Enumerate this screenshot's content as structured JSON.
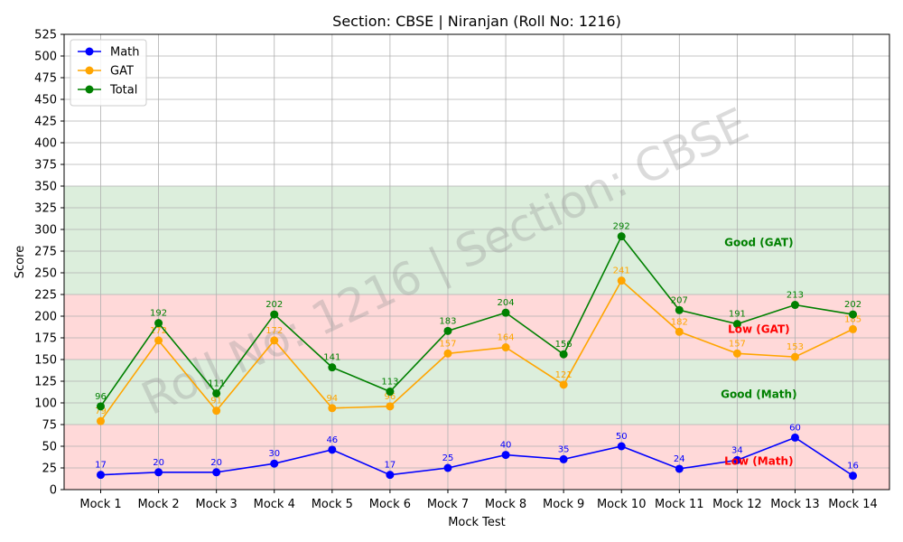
{
  "chart_data": {
    "type": "line",
    "title": "Section: CBSE | Niranjan (Roll No: 1216)",
    "xlabel": "Mock Test",
    "ylabel": "Score",
    "ylim": [
      0,
      525
    ],
    "yticks": [
      0,
      25,
      50,
      75,
      100,
      125,
      150,
      175,
      200,
      225,
      250,
      275,
      300,
      325,
      350,
      375,
      400,
      425,
      450,
      475,
      500,
      525
    ],
    "grid": true,
    "legend_position": "top-left",
    "categories": [
      "Mock 1",
      "Mock 2",
      "Mock 3",
      "Mock 4",
      "Mock 5",
      "Mock 6",
      "Mock 7",
      "Mock 8",
      "Mock 9",
      "Mock 10",
      "Mock 11",
      "Mock 12",
      "Mock 13",
      "Mock 14"
    ],
    "series": [
      {
        "name": "Math",
        "color": "#0000ff",
        "values": [
          17,
          20,
          20,
          30,
          46,
          17,
          25,
          40,
          35,
          50,
          24,
          34,
          60,
          16
        ]
      },
      {
        "name": "GAT",
        "color": "#ffa500",
        "values": [
          79,
          172,
          91,
          172,
          94,
          96,
          157,
          164,
          121,
          241,
          182,
          157,
          153,
          185
        ]
      },
      {
        "name": "Total",
        "color": "#008000",
        "values": [
          96,
          192,
          111,
          202,
          141,
          113,
          183,
          204,
          156,
          292,
          207,
          191,
          213,
          202
        ]
      }
    ],
    "bands": [
      {
        "from": 0,
        "to": 75,
        "color": "#ffcccc"
      },
      {
        "from": 75,
        "to": 150,
        "color": "#d0e8d0"
      },
      {
        "from": 150,
        "to": 225,
        "color": "#ffcccc"
      },
      {
        "from": 225,
        "to": 350,
        "color": "#d0e8d0"
      }
    ],
    "annotations": [
      {
        "text": "Good (GAT)",
        "x": "Mock 12",
        "y": 285,
        "color": "#008000"
      },
      {
        "text": "Low (GAT)",
        "x": "Mock 12",
        "y": 185,
        "color": "#ff0000"
      },
      {
        "text": "Good (Math)",
        "x": "Mock 12",
        "y": 110,
        "color": "#008000"
      },
      {
        "text": "Low (Math)",
        "x": "Mock 12",
        "y": 33,
        "color": "#ff0000"
      }
    ],
    "watermark": "Roll No: 1216 | Section: CBSE"
  }
}
